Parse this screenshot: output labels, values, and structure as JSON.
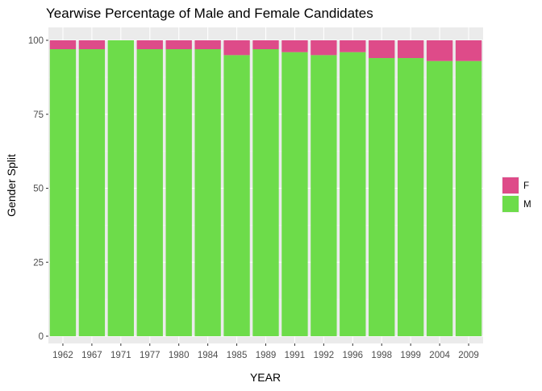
{
  "chart_data": {
    "type": "bar",
    "stacked": true,
    "title": "Yearwise Percentage of Male and Female Candidates",
    "xlabel": "YEAR",
    "ylabel": "Gender Split",
    "categories": [
      "1962",
      "1967",
      "1971",
      "1977",
      "1980",
      "1984",
      "1985",
      "1989",
      "1991",
      "1992",
      "1996",
      "1998",
      "1999",
      "2004",
      "2009"
    ],
    "yticks": [
      0,
      25,
      50,
      75,
      100
    ],
    "ylim": [
      0,
      100
    ],
    "grid": true,
    "legend_position": "right",
    "series": [
      {
        "name": "M",
        "color": "#6ddc4a",
        "values": [
          97,
          97,
          100,
          97,
          97,
          97,
          95,
          97,
          96,
          95,
          96,
          94,
          94,
          93,
          93
        ]
      },
      {
        "name": "F",
        "color": "#de4b89",
        "values": [
          3,
          3,
          0,
          3,
          3,
          3,
          5,
          3,
          4,
          5,
          4,
          6,
          6,
          7,
          7
        ]
      }
    ],
    "legend": [
      {
        "name": "F",
        "color": "#de4b89"
      },
      {
        "name": "M",
        "color": "#6ddc4a"
      }
    ]
  }
}
